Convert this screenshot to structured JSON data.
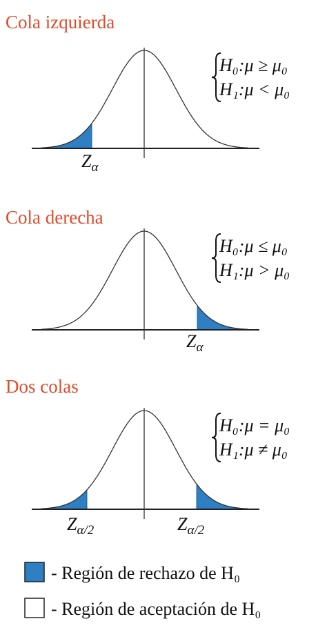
{
  "panels": [
    {
      "title": "Cola izquierda",
      "hypotheses": [
        "H₀:μ ≥ μ₀",
        "H₁:μ < μ₀"
      ],
      "z_labels": [
        {
          "symbol": "Z",
          "subscript": "α"
        }
      ]
    },
    {
      "title": "Cola derecha",
      "hypotheses": [
        "H₀:μ ≤ μ₀",
        "H₁:μ > μ₀"
      ],
      "z_labels": [
        {
          "symbol": "Z",
          "subscript": "α"
        }
      ]
    },
    {
      "title": "Dos colas",
      "hypotheses": [
        "H₀:μ = μ₀",
        "H₁:μ ≠ μ₀"
      ],
      "z_labels": [
        {
          "symbol": "Z",
          "subscript": "α/2"
        },
        {
          "symbol": "Z",
          "subscript": "α/2"
        }
      ]
    }
  ],
  "legend": [
    {
      "label": "- Región de rechazo de H₀"
    },
    {
      "label": "- Región de aceptación de H₀"
    }
  ]
}
